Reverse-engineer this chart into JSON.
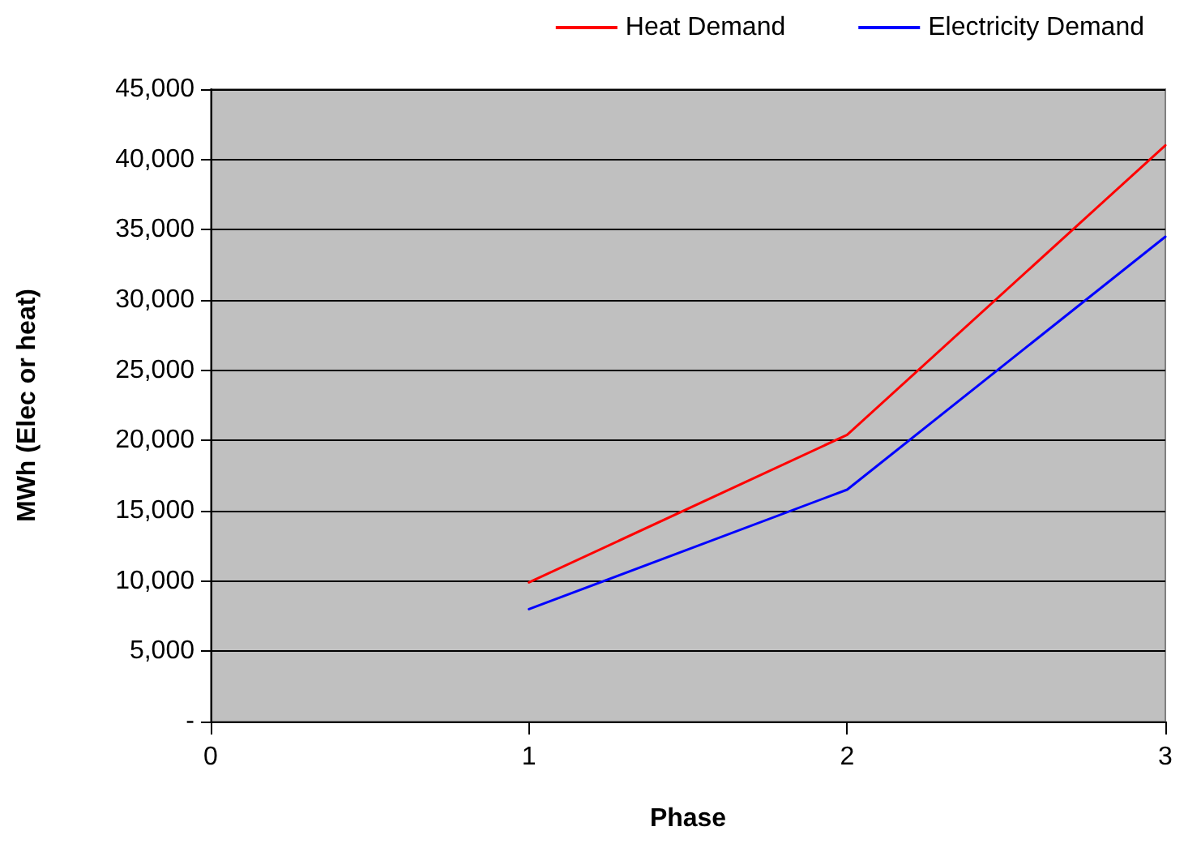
{
  "chart_data": {
    "type": "line",
    "xlabel": "Phase",
    "ylabel": "MWh (Elec or heat)",
    "x": [
      1,
      2,
      3
    ],
    "series": [
      {
        "name": "Heat Demand",
        "color": "#ff0000",
        "values": [
          9900,
          20400,
          41000
        ]
      },
      {
        "name": "Electricity Demand",
        "color": "#0000ff",
        "values": [
          8000,
          16500,
          34500
        ]
      }
    ],
    "xlim": [
      0,
      3
    ],
    "xticks": [
      0,
      1,
      2,
      3
    ],
    "ylim": [
      0,
      45000
    ],
    "yticks": [
      {
        "value": 0,
        "label": "-"
      },
      {
        "value": 5000,
        "label": "5,000"
      },
      {
        "value": 10000,
        "label": "10,000"
      },
      {
        "value": 15000,
        "label": "15,000"
      },
      {
        "value": 20000,
        "label": "20,000"
      },
      {
        "value": 25000,
        "label": "25,000"
      },
      {
        "value": 30000,
        "label": "30,000"
      },
      {
        "value": 35000,
        "label": "35,000"
      },
      {
        "value": 40000,
        "label": "40,000"
      },
      {
        "value": 45000,
        "label": "45,000"
      }
    ],
    "grid": "y",
    "legend": "top right",
    "marker": "none",
    "line_style": "solid"
  }
}
